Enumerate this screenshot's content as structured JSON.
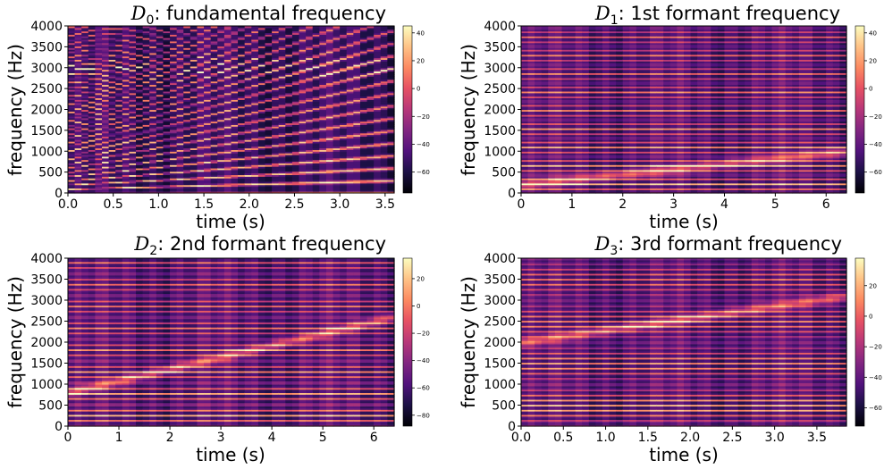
{
  "colors": {
    "low": "#000004",
    "mid": "#b73779",
    "high": "#fcfdbf"
  },
  "chart_data": [
    {
      "type": "heatmap",
      "title_symbol": "D",
      "title_sub": "0",
      "title_text": ": fundamental frequency",
      "xlabel": "time (s)",
      "ylabel": "frequency (Hz)",
      "xlim": [
        0,
        3.6
      ],
      "ylim": [
        0,
        4000
      ],
      "xticks": [
        "0.0",
        "0.5",
        "1.0",
        "1.5",
        "2.0",
        "2.5",
        "3.0",
        "3.5"
      ],
      "xtick_values": [
        0,
        0.5,
        1.0,
        1.5,
        2.0,
        2.5,
        3.0,
        3.5
      ],
      "yticks": [
        "0",
        "500",
        "1000",
        "1500",
        "2000",
        "2500",
        "3000",
        "3500",
        "4000"
      ],
      "ytick_values": [
        0,
        500,
        1000,
        1500,
        2000,
        2500,
        3000,
        3500,
        4000
      ],
      "colorbar_ticks": [
        "40",
        "20",
        "0",
        "−20",
        "−40",
        "−60"
      ],
      "colorbar_values": [
        40,
        20,
        0,
        -20,
        -40,
        -60
      ],
      "colorbar_range": [
        -75,
        45
      ],
      "pattern": {
        "kind": "rising_f0",
        "f0_start_hz": 100,
        "f0_end_hz": 300,
        "formant_hz": 3000
      }
    },
    {
      "type": "heatmap",
      "title_symbol": "D",
      "title_sub": "1",
      "title_text": ": 1st formant frequency",
      "xlabel": "time (s)",
      "ylabel": "frequency (Hz)",
      "xlim": [
        0,
        6.4
      ],
      "ylim": [
        0,
        4000
      ],
      "xticks": [
        "0",
        "1",
        "2",
        "3",
        "4",
        "5",
        "6"
      ],
      "xtick_values": [
        0,
        1,
        2,
        3,
        4,
        5,
        6
      ],
      "yticks": [
        "0",
        "500",
        "1000",
        "1500",
        "2000",
        "2500",
        "3000",
        "3500",
        "4000"
      ],
      "ytick_values": [
        0,
        500,
        1000,
        1500,
        2000,
        2500,
        3000,
        3500,
        4000
      ],
      "colorbar_ticks": [
        "40",
        "20",
        "0",
        "−20",
        "−40",
        "−60"
      ],
      "colorbar_values": [
        40,
        20,
        0,
        -20,
        -40,
        -60
      ],
      "colorbar_range": [
        -75,
        45
      ],
      "pattern": {
        "kind": "moving_formant",
        "f0_hz": 110,
        "formant_start_hz": 200,
        "formant_end_hz": 1000
      }
    },
    {
      "type": "heatmap",
      "title_symbol": "D",
      "title_sub": "2",
      "title_text": ": 2nd formant frequency",
      "xlabel": "time (s)",
      "ylabel": "frequency (Hz)",
      "xlim": [
        0,
        6.4
      ],
      "ylim": [
        0,
        4000
      ],
      "xticks": [
        "0",
        "1",
        "2",
        "3",
        "4",
        "5",
        "6"
      ],
      "xtick_values": [
        0,
        1,
        2,
        3,
        4,
        5,
        6
      ],
      "yticks": [
        "0",
        "500",
        "1000",
        "1500",
        "2000",
        "2500",
        "3000",
        "3500",
        "4000"
      ],
      "ytick_values": [
        0,
        500,
        1000,
        1500,
        2000,
        2500,
        3000,
        3500,
        4000
      ],
      "colorbar_ticks": [
        "20",
        "0",
        "−20",
        "−40",
        "−60",
        "−80"
      ],
      "colorbar_values": [
        20,
        0,
        -20,
        -40,
        -60,
        -80
      ],
      "colorbar_range": [
        -88,
        35
      ],
      "pattern": {
        "kind": "moving_formant",
        "f0_hz": 130,
        "formant_start_hz": 800,
        "formant_end_hz": 2600
      }
    },
    {
      "type": "heatmap",
      "title_symbol": "D",
      "title_sub": "3",
      "title_text": ": 3rd formant frequency",
      "xlabel": "time (s)",
      "ylabel": "frequency (Hz)",
      "xlim": [
        0,
        3.85
      ],
      "ylim": [
        0,
        4000
      ],
      "xticks": [
        "0.0",
        "0.5",
        "1.0",
        "1.5",
        "2.0",
        "2.5",
        "3.0",
        "3.5"
      ],
      "xtick_values": [
        0,
        0.5,
        1.0,
        1.5,
        2.0,
        2.5,
        3.0,
        3.5
      ],
      "yticks": [
        "0",
        "500",
        "1000",
        "1500",
        "2000",
        "2500",
        "3000",
        "3500",
        "4000"
      ],
      "ytick_values": [
        0,
        500,
        1000,
        1500,
        2000,
        2500,
        3000,
        3500,
        4000
      ],
      "colorbar_ticks": [
        "20",
        "0",
        "−20",
        "−40",
        "−60"
      ],
      "colorbar_values": [
        20,
        0,
        -20,
        -40,
        -60
      ],
      "colorbar_range": [
        -72,
        38
      ],
      "pattern": {
        "kind": "moving_formant",
        "f0_hz": 125,
        "formant_start_hz": 2000,
        "formant_end_hz": 3100
      }
    }
  ]
}
